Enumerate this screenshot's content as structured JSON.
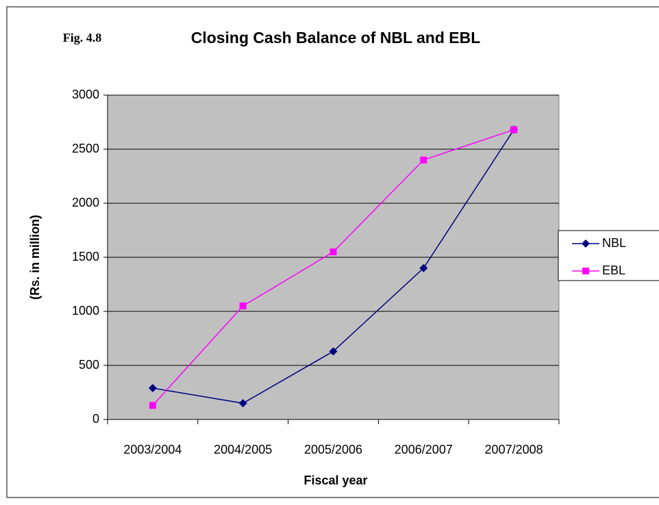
{
  "chart_data": {
    "type": "line",
    "figure_label": "Fig. 4.8",
    "title": "Closing Cash Balance of NBL and EBL",
    "x_label": "Fiscal year",
    "y_label": "(Rs. in million)",
    "categories": [
      "2003/2004",
      "2004/2005",
      "2005/2006",
      "2006/2007",
      "2007/2008"
    ],
    "series": [
      {
        "name": "NBL",
        "color": "#000080",
        "marker": "diamond",
        "values": [
          290,
          150,
          630,
          1400,
          2680
        ]
      },
      {
        "name": "EBL",
        "color": "#ff00ff",
        "marker": "square",
        "values": [
          130,
          1050,
          1550,
          2400,
          2680
        ]
      }
    ],
    "ylim": [
      0,
      3000
    ],
    "yticks": [
      0,
      500,
      1000,
      1500,
      2000,
      2500,
      3000
    ],
    "grid": true,
    "legend": "right",
    "plot_background": "#c0c0c0"
  }
}
